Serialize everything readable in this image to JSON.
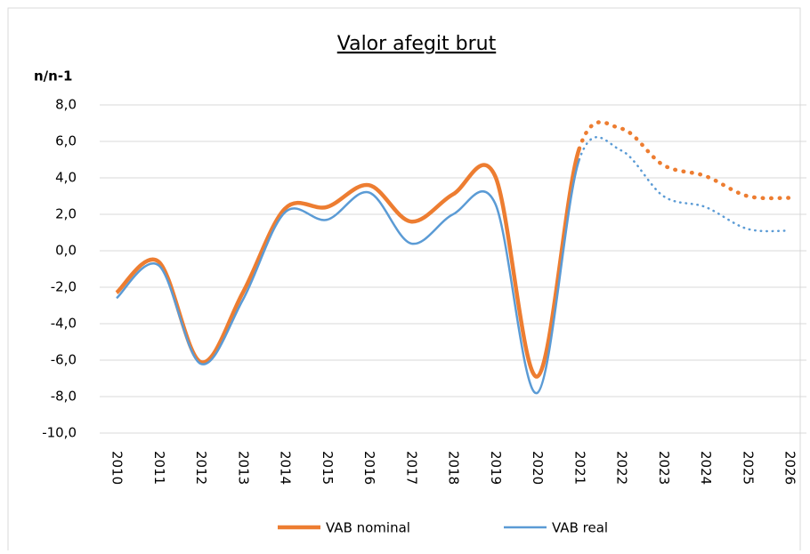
{
  "chart_data": {
    "type": "line",
    "title": "Valor afegit brut",
    "y_label": "n/n-1",
    "categories": [
      "2010",
      "2011",
      "2012",
      "2013",
      "2014",
      "2015",
      "2016",
      "2017",
      "2018",
      "2019",
      "2020",
      "2021",
      "2022",
      "2023",
      "2024",
      "2025",
      "2026"
    ],
    "dotted_from": "2021",
    "series": [
      {
        "name": "VAB nominal",
        "color": "#ed7d31",
        "values": [
          -2.3,
          -0.6,
          -6.1,
          -2.3,
          2.3,
          2.4,
          3.6,
          1.6,
          3.1,
          4.1,
          -6.9,
          5.6,
          6.7,
          4.7,
          4.1,
          3.0,
          2.9
        ]
      },
      {
        "name": "VAB real",
        "color": "#5b9bd5",
        "values": [
          -2.6,
          -0.8,
          -6.2,
          -2.7,
          2.1,
          1.7,
          3.2,
          0.4,
          2.0,
          2.6,
          -7.8,
          5.0,
          5.5,
          3.0,
          2.4,
          1.2,
          1.1
        ]
      }
    ],
    "ylim": [
      -10,
      8
    ],
    "yticks": [
      {
        "value": -10,
        "label": "-10,0"
      },
      {
        "value": -8,
        "label": "-8,0"
      },
      {
        "value": -6,
        "label": "-6,0"
      },
      {
        "value": -4,
        "label": "-4,0"
      },
      {
        "value": -2,
        "label": "-2,0"
      },
      {
        "value": 0,
        "label": "0,0"
      },
      {
        "value": 2,
        "label": "2,0"
      },
      {
        "value": 4,
        "label": "4,0"
      },
      {
        "value": 6,
        "label": "6,0"
      },
      {
        "value": 8,
        "label": "8,0"
      }
    ],
    "grid": true
  }
}
